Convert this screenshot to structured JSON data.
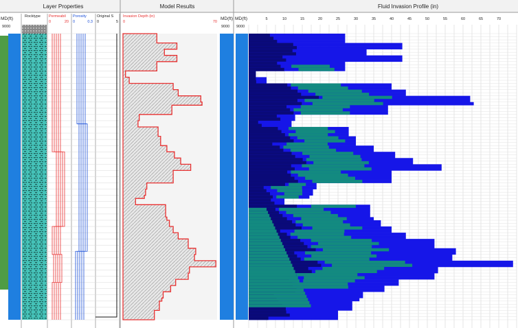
{
  "panels": {
    "layer_properties": "Layer Properties",
    "model_results": "Model Results",
    "fluid_invasion": "Fluid Invasion Profile (in)"
  },
  "track_headers": {
    "md": "MD(ft)",
    "rocktype": "Rocktype",
    "permeability": "Permeabil",
    "porosity": "Porosity",
    "original": "Original S",
    "invasion_depth": "Invasion Depth (in)"
  },
  "scale_labels": {
    "perm_min": "0",
    "perm_max": "20",
    "poro_min": "0",
    "poro_max": "0.3",
    "orig_min": "0",
    "orig_max": "5",
    "inv_min": "0",
    "inv_max": "70"
  },
  "top_depth": "9000",
  "colors": {
    "track_blue": "#1f7fe0",
    "rock_fill": "#45c2b8",
    "invasion_red": "#e83030",
    "porosity_blue": "#1a4fd8",
    "dark_navy": "#0a0a78",
    "mid_blue": "#1616e8",
    "teal": "#138a80",
    "green_bar": "#4f9c45"
  },
  "chart_data": {
    "type": "area",
    "title": "Fluid Invasion Profile (in)",
    "ylabel": "MD(ft)",
    "xlim": [
      0,
      75
    ],
    "x_ticks": [
      5,
      10,
      15,
      20,
      25,
      30,
      35,
      40,
      45,
      50,
      55,
      60,
      65,
      70
    ],
    "depth_top": 9000,
    "series": [
      {
        "values": [
          27,
          27,
          27,
          43,
          43,
          33,
          33,
          43,
          43,
          27,
          27,
          27,
          2,
          2,
          5,
          5,
          40,
          40,
          44,
          44,
          62,
          62,
          63,
          39,
          39,
          39,
          13,
          13,
          12,
          12,
          28,
          28,
          28,
          30,
          30,
          30,
          35,
          35,
          41,
          41,
          46,
          46,
          54,
          54,
          40,
          40,
          40,
          40,
          19,
          19,
          18,
          18,
          17,
          10,
          10,
          34,
          34,
          34,
          34,
          35,
          37,
          37,
          40,
          40,
          44,
          44,
          52,
          52,
          52,
          58,
          58,
          57,
          57,
          74,
          74,
          53,
          53,
          52,
          52,
          42,
          42,
          38,
          38,
          32,
          32,
          31,
          29,
          29,
          29,
          25,
          25,
          25
        ]
      }
    ]
  }
}
